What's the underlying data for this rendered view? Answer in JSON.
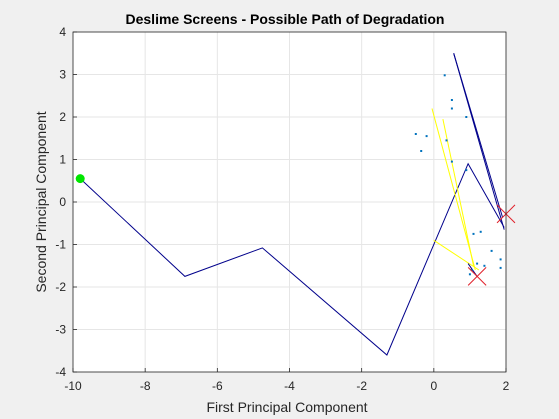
{
  "chart_data": {
    "type": "line",
    "title": "Deslime Screens - Possible Path of Degradation",
    "xlabel": "First Principal Component",
    "ylabel": "Second Principal Component",
    "xlim": [
      -10,
      2
    ],
    "ylim": [
      -4,
      4
    ],
    "xticks": [
      -10,
      -8,
      -6,
      -4,
      -2,
      0,
      2
    ],
    "yticks": [
      -4,
      -3,
      -2,
      -1,
      0,
      1,
      2,
      3,
      4
    ],
    "grid": true,
    "colors": {
      "background": "#f0f0f0",
      "plot_area": "#ffffff",
      "grid": "#e6e6e6",
      "axis": "#262626",
      "path": "#00008b",
      "yellow_lines": "#ffff00",
      "points": "#0072bd",
      "start_marker": "#00e600",
      "end_marker": "#e0202a"
    },
    "series": [
      {
        "kind": "path",
        "color": "#00008b",
        "x": [
          -9.8,
          -6.9,
          -4.75,
          -1.3,
          0.95,
          1.95
        ],
        "y": [
          0.55,
          -1.75,
          -1.08,
          -3.6,
          0.9,
          -0.6
        ]
      },
      {
        "kind": "path",
        "color": "#00008b",
        "x": [
          0.55,
          1.95
        ],
        "y": [
          3.5,
          -0.65
        ]
      },
      {
        "kind": "path",
        "color": "#00008b",
        "x": [
          0.55,
          1.9
        ],
        "y": [
          3.5,
          -0.35
        ]
      },
      {
        "kind": "path",
        "color": "#ffff00",
        "x": [
          -0.05,
          1.15
        ],
        "y": [
          2.2,
          -1.6
        ]
      },
      {
        "kind": "path",
        "color": "#ffff00",
        "x": [
          0.25,
          1.1
        ],
        "y": [
          1.95,
          -1.5
        ]
      },
      {
        "kind": "path",
        "color": "#ffff00",
        "x": [
          0.0,
          1.25
        ],
        "y": [
          -0.9,
          -1.6
        ]
      },
      {
        "kind": "path",
        "color": "#00008b",
        "x": [
          0.95,
          1.2
        ],
        "y": [
          -1.45,
          -1.75
        ]
      },
      {
        "kind": "scatter",
        "color": "#0072bd",
        "x": [
          0.3,
          0.5,
          0.5,
          0.9,
          -0.2,
          -0.5,
          -0.35,
          0.35,
          0.5,
          0.9,
          1.3,
          1.6,
          1.85,
          1.85,
          1.4,
          1.05,
          1.0,
          1.2,
          1.1
        ],
        "y": [
          2.98,
          2.4,
          2.2,
          2.0,
          1.55,
          1.6,
          1.2,
          1.45,
          0.95,
          0.75,
          -0.7,
          -1.15,
          -1.35,
          -1.55,
          -1.5,
          -1.6,
          -1.7,
          -1.45,
          -0.75
        ]
      }
    ],
    "start_marker": {
      "x": -9.8,
      "y": 0.55
    },
    "end_markers": [
      {
        "x": 1.2,
        "y": -1.75
      },
      {
        "x": 2.0,
        "y": -0.28
      }
    ]
  }
}
